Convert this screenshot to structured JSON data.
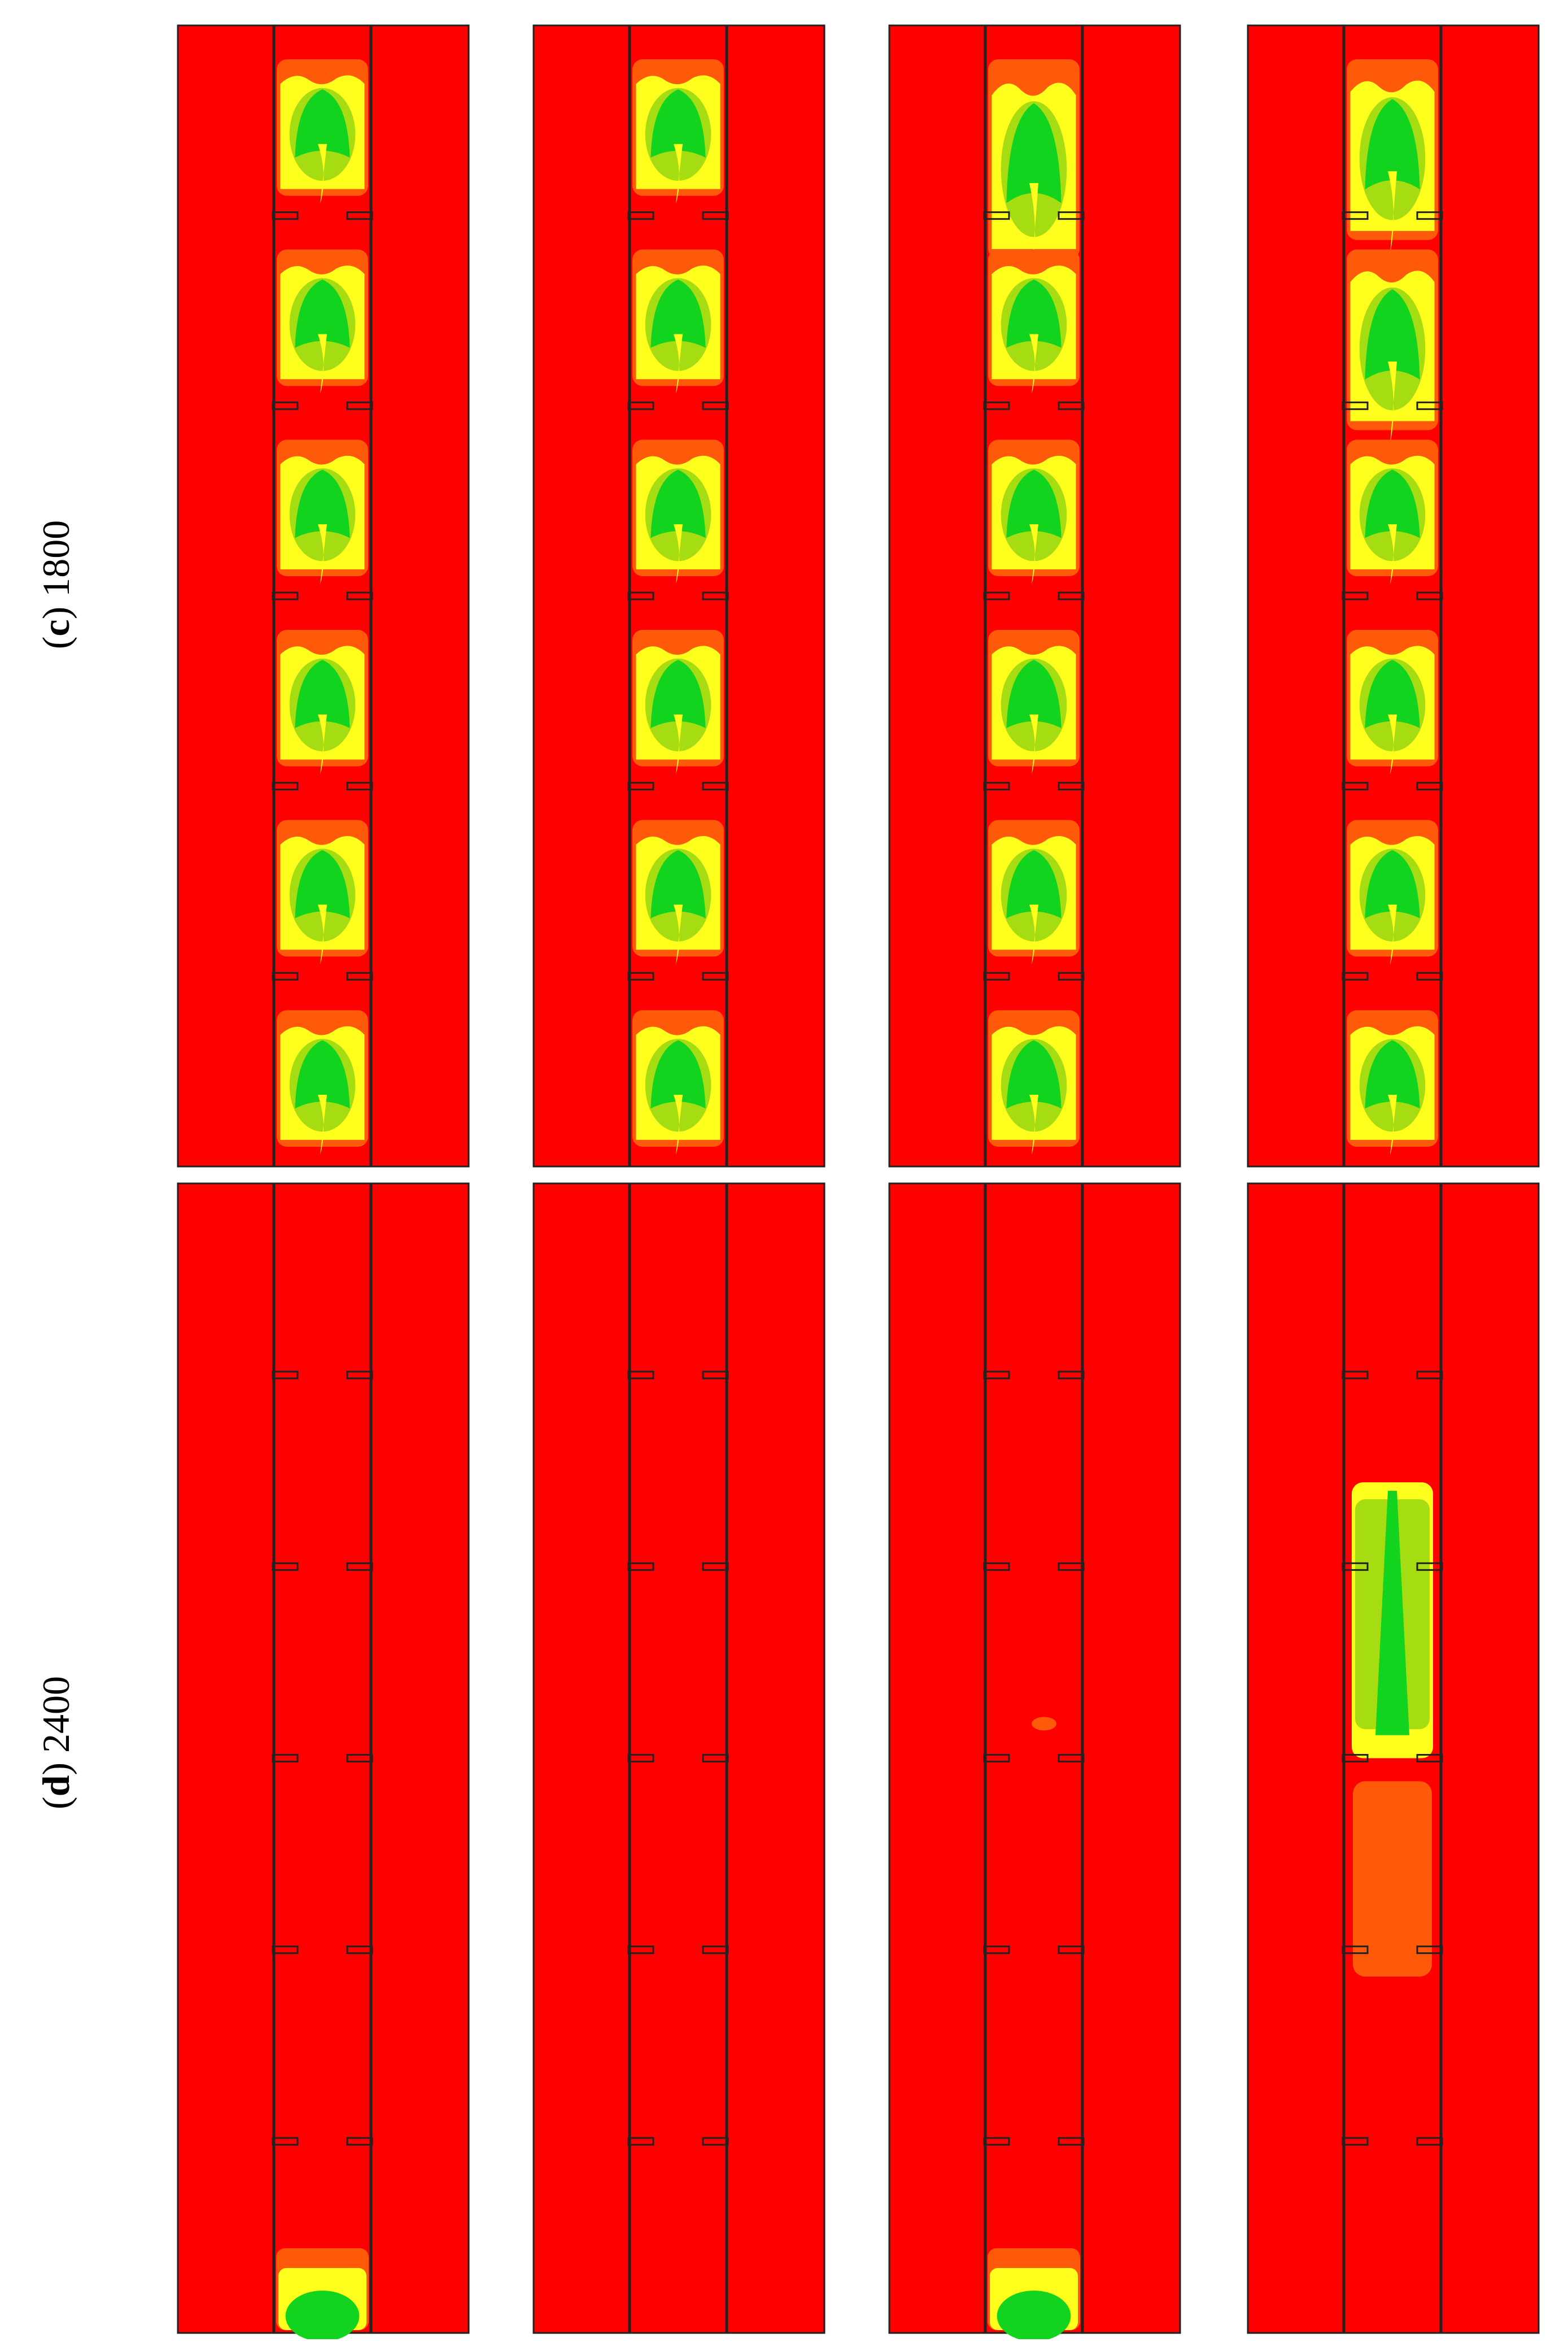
{
  "rows": [
    {
      "letter": "c",
      "value": "1800"
    },
    {
      "letter": "d",
      "value": "2400"
    }
  ],
  "colors": {
    "background_fluid": "#fe0000",
    "orange": "#ff5a0a",
    "yellow": "#ffff1e",
    "yellow_green": "#a6dc12",
    "green": "#12d31e",
    "outline": "#222222"
  }
}
